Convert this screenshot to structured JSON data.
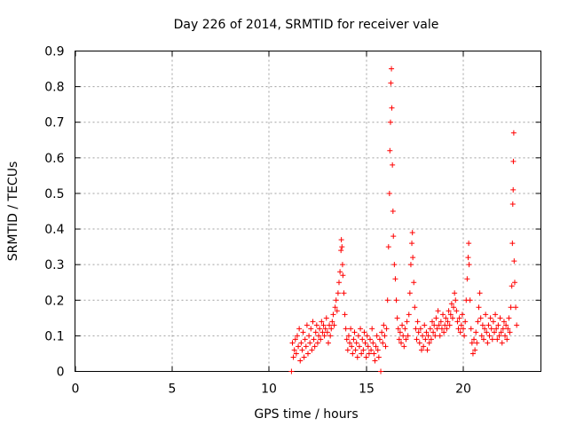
{
  "chart_data": {
    "type": "scatter",
    "title": "Day 226 of 2014, SRMTID for receiver vale",
    "xlabel": "GPS time / hours",
    "ylabel": "SRMTID / TECUs",
    "xlim": [
      0,
      24
    ],
    "ylim": [
      0,
      0.9
    ],
    "xticks": [
      "0",
      "5",
      "10",
      "15",
      "20"
    ],
    "xtick_values": [
      0,
      5,
      10,
      15,
      20
    ],
    "yticks": [
      "0",
      "0.1",
      "0.2",
      "0.3",
      "0.4",
      "0.5",
      "0.6",
      "0.7",
      "0.8",
      "0.9"
    ],
    "ytick_values": [
      0,
      0.1,
      0.2,
      0.3,
      0.4,
      0.5,
      0.6,
      0.7,
      0.8,
      0.9
    ],
    "grid": true,
    "marker": "plus",
    "color": "#ff0000",
    "series": [
      {
        "name": "SRMTID",
        "points": [
          [
            11.15,
            0.0
          ],
          [
            11.2,
            0.08
          ],
          [
            11.25,
            0.04
          ],
          [
            11.3,
            0.06
          ],
          [
            11.35,
            0.09
          ],
          [
            11.4,
            0.05
          ],
          [
            11.45,
            0.1
          ],
          [
            11.5,
            0.07
          ],
          [
            11.55,
            0.12
          ],
          [
            11.6,
            0.03
          ],
          [
            11.65,
            0.08
          ],
          [
            11.7,
            0.06
          ],
          [
            11.75,
            0.11
          ],
          [
            11.8,
            0.04
          ],
          [
            11.85,
            0.09
          ],
          [
            11.9,
            0.07
          ],
          [
            11.95,
            0.13
          ],
          [
            12.0,
            0.05
          ],
          [
            12.05,
            0.1
          ],
          [
            12.1,
            0.08
          ],
          [
            12.15,
            0.12
          ],
          [
            12.2,
            0.06
          ],
          [
            12.25,
            0.14
          ],
          [
            12.3,
            0.09
          ],
          [
            12.35,
            0.07
          ],
          [
            12.4,
            0.11
          ],
          [
            12.45,
            0.13
          ],
          [
            12.5,
            0.08
          ],
          [
            12.55,
            0.1
          ],
          [
            12.6,
            0.12
          ],
          [
            12.65,
            0.09
          ],
          [
            12.7,
            0.14
          ],
          [
            12.75,
            0.11
          ],
          [
            12.8,
            0.13
          ],
          [
            12.85,
            0.1
          ],
          [
            12.9,
            0.12
          ],
          [
            12.95,
            0.15
          ],
          [
            13.0,
            0.11
          ],
          [
            13.05,
            0.08
          ],
          [
            13.1,
            0.13
          ],
          [
            13.15,
            0.1
          ],
          [
            13.2,
            0.12
          ],
          [
            13.25,
            0.14
          ],
          [
            13.3,
            0.16
          ],
          [
            13.35,
            0.13
          ],
          [
            13.4,
            0.18
          ],
          [
            13.45,
            0.2
          ],
          [
            13.5,
            0.17
          ],
          [
            13.55,
            0.22
          ],
          [
            13.6,
            0.25
          ],
          [
            13.65,
            0.28
          ],
          [
            13.7,
            0.34
          ],
          [
            13.72,
            0.37
          ],
          [
            13.75,
            0.35
          ],
          [
            13.78,
            0.3
          ],
          [
            13.8,
            0.27
          ],
          [
            13.85,
            0.22
          ],
          [
            13.9,
            0.16
          ],
          [
            13.95,
            0.12
          ],
          [
            14.0,
            0.09
          ],
          [
            14.05,
            0.06
          ],
          [
            14.1,
            0.1
          ],
          [
            14.15,
            0.08
          ],
          [
            14.2,
            0.12
          ],
          [
            14.25,
            0.07
          ],
          [
            14.3,
            0.05
          ],
          [
            14.35,
            0.09
          ],
          [
            14.4,
            0.11
          ],
          [
            14.45,
            0.06
          ],
          [
            14.5,
            0.08
          ],
          [
            14.55,
            0.04
          ],
          [
            14.6,
            0.1
          ],
          [
            14.65,
            0.07
          ],
          [
            14.7,
            0.12
          ],
          [
            14.75,
            0.05
          ],
          [
            14.8,
            0.09
          ],
          [
            14.85,
            0.06
          ],
          [
            14.9,
            0.11
          ],
          [
            14.95,
            0.08
          ],
          [
            15.0,
            0.04
          ],
          [
            15.05,
            0.1
          ],
          [
            15.1,
            0.07
          ],
          [
            15.15,
            0.05
          ],
          [
            15.2,
            0.09
          ],
          [
            15.25,
            0.06
          ],
          [
            15.3,
            0.12
          ],
          [
            15.35,
            0.08
          ],
          [
            15.4,
            0.05
          ],
          [
            15.45,
            0.03
          ],
          [
            15.5,
            0.07
          ],
          [
            15.55,
            0.1
          ],
          [
            15.6,
            0.06
          ],
          [
            15.65,
            0.04
          ],
          [
            15.7,
            0.09
          ],
          [
            15.75,
            0.0
          ],
          [
            15.8,
            0.11
          ],
          [
            15.85,
            0.08
          ],
          [
            15.9,
            0.13
          ],
          [
            15.95,
            0.1
          ],
          [
            16.0,
            0.07
          ],
          [
            16.05,
            0.12
          ],
          [
            16.1,
            0.2
          ],
          [
            16.15,
            0.35
          ],
          [
            16.2,
            0.5
          ],
          [
            16.22,
            0.62
          ],
          [
            16.25,
            0.7
          ],
          [
            16.27,
            0.81
          ],
          [
            16.3,
            0.85
          ],
          [
            16.32,
            0.74
          ],
          [
            16.35,
            0.58
          ],
          [
            16.38,
            0.45
          ],
          [
            16.4,
            0.38
          ],
          [
            16.45,
            0.3
          ],
          [
            16.5,
            0.26
          ],
          [
            16.55,
            0.2
          ],
          [
            16.6,
            0.15
          ],
          [
            16.65,
            0.12
          ],
          [
            16.7,
            0.09
          ],
          [
            16.75,
            0.11
          ],
          [
            16.8,
            0.08
          ],
          [
            16.85,
            0.13
          ],
          [
            16.9,
            0.1
          ],
          [
            16.95,
            0.07
          ],
          [
            17.0,
            0.12
          ],
          [
            17.05,
            0.09
          ],
          [
            17.1,
            0.14
          ],
          [
            17.15,
            0.1
          ],
          [
            17.2,
            0.16
          ],
          [
            17.25,
            0.22
          ],
          [
            17.3,
            0.3
          ],
          [
            17.35,
            0.36
          ],
          [
            17.38,
            0.39
          ],
          [
            17.4,
            0.32
          ],
          [
            17.45,
            0.25
          ],
          [
            17.5,
            0.18
          ],
          [
            17.55,
            0.12
          ],
          [
            17.6,
            0.09
          ],
          [
            17.65,
            0.14
          ],
          [
            17.7,
            0.11
          ],
          [
            17.75,
            0.08
          ],
          [
            17.8,
            0.12
          ],
          [
            17.85,
            0.06
          ],
          [
            17.9,
            0.1
          ],
          [
            17.95,
            0.07
          ],
          [
            18.0,
            0.13
          ],
          [
            18.05,
            0.09
          ],
          [
            18.1,
            0.11
          ],
          [
            18.15,
            0.06
          ],
          [
            18.2,
            0.1
          ],
          [
            18.25,
            0.08
          ],
          [
            18.3,
            0.12
          ],
          [
            18.35,
            0.09
          ],
          [
            18.4,
            0.14
          ],
          [
            18.45,
            0.11
          ],
          [
            18.5,
            0.13
          ],
          [
            18.55,
            0.1
          ],
          [
            18.6,
            0.15
          ],
          [
            18.65,
            0.12
          ],
          [
            18.7,
            0.17
          ],
          [
            18.75,
            0.13
          ],
          [
            18.8,
            0.1
          ],
          [
            18.85,
            0.14
          ],
          [
            18.9,
            0.12
          ],
          [
            18.95,
            0.16
          ],
          [
            19.0,
            0.11
          ],
          [
            19.05,
            0.13
          ],
          [
            19.1,
            0.15
          ],
          [
            19.15,
            0.12
          ],
          [
            19.2,
            0.14
          ],
          [
            19.25,
            0.17
          ],
          [
            19.3,
            0.13
          ],
          [
            19.35,
            0.16
          ],
          [
            19.4,
            0.19
          ],
          [
            19.45,
            0.15
          ],
          [
            19.5,
            0.18
          ],
          [
            19.55,
            0.22
          ],
          [
            19.6,
            0.2
          ],
          [
            19.65,
            0.17
          ],
          [
            19.7,
            0.14
          ],
          [
            19.75,
            0.12
          ],
          [
            19.8,
            0.15
          ],
          [
            19.85,
            0.11
          ],
          [
            19.9,
            0.13
          ],
          [
            19.95,
            0.16
          ],
          [
            20.0,
            0.12
          ],
          [
            20.05,
            0.1
          ],
          [
            20.1,
            0.14
          ],
          [
            20.15,
            0.2
          ],
          [
            20.2,
            0.26
          ],
          [
            20.25,
            0.32
          ],
          [
            20.28,
            0.36
          ],
          [
            20.3,
            0.3
          ],
          [
            20.35,
            0.2
          ],
          [
            20.4,
            0.12
          ],
          [
            20.45,
            0.08
          ],
          [
            20.5,
            0.05
          ],
          [
            20.55,
            0.09
          ],
          [
            20.6,
            0.06
          ],
          [
            20.65,
            0.11
          ],
          [
            20.7,
            0.08
          ],
          [
            20.75,
            0.14
          ],
          [
            20.8,
            0.18
          ],
          [
            20.85,
            0.22
          ],
          [
            20.9,
            0.15
          ],
          [
            20.95,
            0.1
          ],
          [
            21.0,
            0.13
          ],
          [
            21.05,
            0.09
          ],
          [
            21.1,
            0.12
          ],
          [
            21.15,
            0.16
          ],
          [
            21.2,
            0.11
          ],
          [
            21.25,
            0.08
          ],
          [
            21.3,
            0.13
          ],
          [
            21.35,
            0.1
          ],
          [
            21.4,
            0.15
          ],
          [
            21.45,
            0.12
          ],
          [
            21.5,
            0.09
          ],
          [
            21.55,
            0.14
          ],
          [
            21.6,
            0.11
          ],
          [
            21.65,
            0.16
          ],
          [
            21.7,
            0.12
          ],
          [
            21.75,
            0.09
          ],
          [
            21.8,
            0.13
          ],
          [
            21.85,
            0.1
          ],
          [
            21.9,
            0.15
          ],
          [
            21.95,
            0.11
          ],
          [
            22.0,
            0.08
          ],
          [
            22.05,
            0.12
          ],
          [
            22.1,
            0.14
          ],
          [
            22.15,
            0.1
          ],
          [
            22.2,
            0.13
          ],
          [
            22.25,
            0.09
          ],
          [
            22.3,
            0.12
          ],
          [
            22.35,
            0.15
          ],
          [
            22.4,
            0.11
          ],
          [
            22.45,
            0.18
          ],
          [
            22.5,
            0.24
          ],
          [
            22.53,
            0.36
          ],
          [
            22.55,
            0.47
          ],
          [
            22.57,
            0.51
          ],
          [
            22.58,
            0.59
          ],
          [
            22.6,
            0.67
          ],
          [
            22.62,
            0.31
          ],
          [
            22.65,
            0.25
          ],
          [
            22.7,
            0.18
          ],
          [
            22.75,
            0.13
          ]
        ]
      }
    ]
  }
}
